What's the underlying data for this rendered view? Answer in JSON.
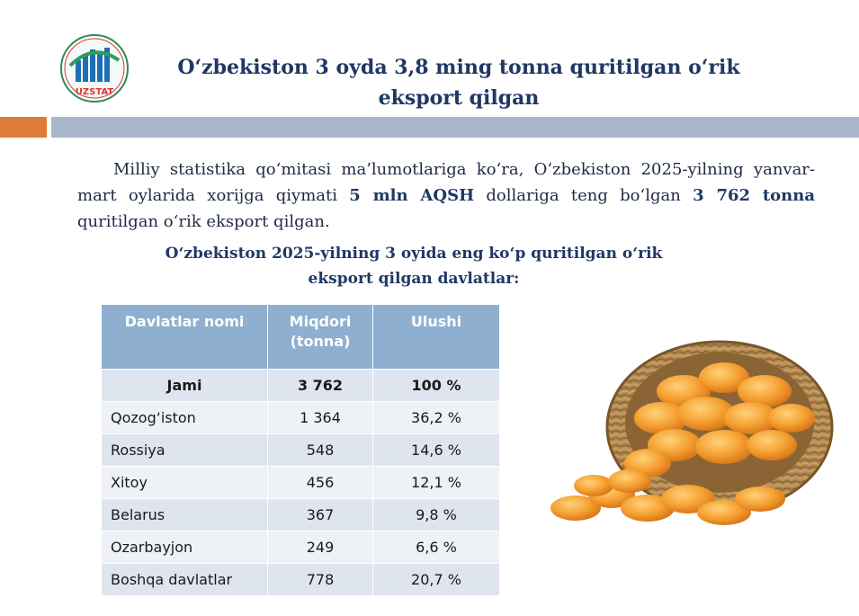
{
  "logo": {
    "text": "UZSTAT"
  },
  "title": {
    "line1": "O‘zbekiston 3 oyda 3,8 ming tonna quritilgan o‘rik",
    "line2": "eksport qilgan"
  },
  "paragraph": {
    "part1": "Milliy statistika qo‘mitasi ma’lumotlariga ko‘ra, O‘zbekiston 2025-yilning yanvar-mart oylarida xorijga qiymati ",
    "bold1": "5 mln AQSH",
    "part2": " dollariga teng bo‘lgan ",
    "bold2": "3 762 tonna",
    "part3": " quritilgan o‘rik eksport qilgan."
  },
  "subtitle": {
    "line1": "O‘zbekiston 2025-yilning 3 oyida eng ko‘p quritilgan o‘rik",
    "line2": "eksport qilgan davlatlar:"
  },
  "table": {
    "headers": [
      "Davlatlar nomi",
      "Miqdori (tonna)",
      "Ulushi"
    ],
    "total": {
      "name": "Jami",
      "amount": "3 762",
      "share": "100 %"
    },
    "rows": [
      {
        "name": "Qozog‘iston",
        "amount": "1 364",
        "share": "36,2 %"
      },
      {
        "name": "Rossiya",
        "amount": "548",
        "share": "14,6 %"
      },
      {
        "name": "Xitoy",
        "amount": "456",
        "share": "12,1 %"
      },
      {
        "name": "Belarus",
        "amount": "367",
        "share": "9,8 %"
      },
      {
        "name": "Ozarbayjon",
        "amount": "249",
        "share": "6,6 %"
      },
      {
        "name": "Boshqa davlatlar",
        "amount": "778",
        "share": "20,7 %"
      }
    ]
  },
  "colors": {
    "title": "#1f3864",
    "accent_orange": "#e07b39",
    "accent_blue": "#a8b8cc",
    "table_header": "#8fafd0"
  },
  "image": {
    "icon": "dried-apricot-basket-image"
  }
}
